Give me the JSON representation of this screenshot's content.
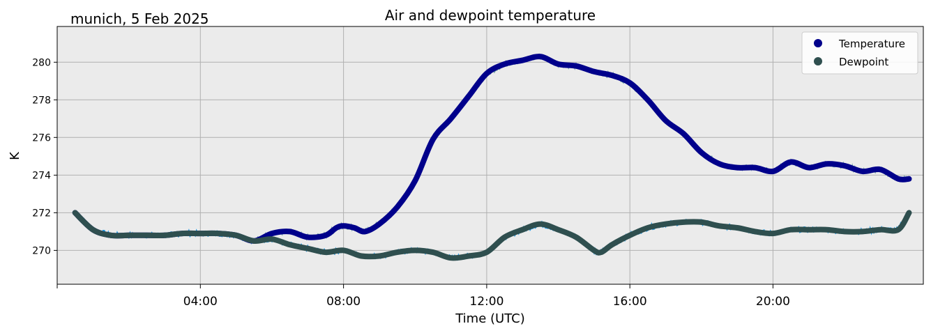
{
  "chart_data": {
    "type": "line",
    "title": "Air and dewpoint temperature",
    "subtitle": "munich, 5 Feb 2025",
    "xlabel": "Time (UTC)",
    "ylabel": "K",
    "x_unit": "hours UTC",
    "xlim": [
      0,
      24.2
    ],
    "ylim": [
      268.2,
      281.9
    ],
    "x_ticks": [
      {
        "value": 4,
        "label": "04:00"
      },
      {
        "value": 8,
        "label": "08:00"
      },
      {
        "value": 12,
        "label": "12:00"
      },
      {
        "value": 16,
        "label": "16:00"
      },
      {
        "value": 20,
        "label": "20:00"
      }
    ],
    "y_ticks": [
      270,
      272,
      274,
      276,
      278,
      280
    ],
    "grid": true,
    "legend_position": "top-right",
    "series": [
      {
        "name": "Temperature",
        "color": "#00008b",
        "raw_color": "#7aa8ab",
        "x": [
          0.5,
          1.0,
          1.5,
          2.0,
          2.5,
          3.0,
          3.5,
          4.0,
          4.5,
          5.0,
          5.5,
          6.0,
          6.5,
          7.0,
          7.5,
          7.8,
          8.0,
          8.3,
          8.6,
          9.0,
          9.5,
          10.0,
          10.5,
          11.0,
          11.5,
          12.0,
          12.5,
          13.0,
          13.5,
          14.0,
          14.5,
          15.0,
          15.5,
          16.0,
          16.5,
          17.0,
          17.5,
          18.0,
          18.5,
          19.0,
          19.5,
          20.0,
          20.5,
          21.0,
          21.5,
          22.0,
          22.5,
          23.0,
          23.5,
          23.8
        ],
        "values": [
          272.0,
          271.1,
          270.8,
          270.8,
          270.8,
          270.8,
          270.9,
          270.9,
          270.9,
          270.8,
          270.5,
          270.9,
          271.0,
          270.7,
          270.8,
          271.2,
          271.3,
          271.2,
          271.0,
          271.4,
          272.3,
          273.7,
          275.9,
          277.0,
          278.2,
          279.4,
          279.9,
          280.1,
          280.3,
          279.9,
          279.8,
          279.5,
          279.3,
          278.9,
          278.0,
          276.9,
          276.2,
          275.2,
          274.6,
          274.4,
          274.4,
          274.2,
          274.7,
          274.4,
          274.6,
          274.5,
          274.2,
          274.3,
          273.8,
          273.8
        ]
      },
      {
        "name": "Dewpoint",
        "color": "#2f4f4f",
        "raw_color": "#1e9be8",
        "x": [
          0.5,
          1.0,
          1.5,
          2.0,
          2.5,
          3.0,
          3.5,
          4.0,
          4.5,
          5.0,
          5.5,
          6.0,
          6.5,
          7.0,
          7.5,
          8.0,
          8.5,
          9.0,
          9.5,
          10.0,
          10.5,
          11.0,
          11.5,
          12.0,
          12.5,
          13.0,
          13.5,
          14.0,
          14.5,
          15.0,
          15.2,
          15.5,
          16.0,
          16.5,
          17.0,
          17.5,
          18.0,
          18.5,
          19.0,
          19.5,
          20.0,
          20.5,
          21.0,
          21.5,
          22.0,
          22.5,
          23.0,
          23.5,
          23.8
        ],
        "values": [
          272.0,
          271.1,
          270.8,
          270.8,
          270.8,
          270.8,
          270.9,
          270.9,
          270.9,
          270.8,
          270.5,
          270.6,
          270.3,
          270.1,
          269.9,
          270.0,
          269.7,
          269.7,
          269.9,
          270.0,
          269.9,
          269.6,
          269.7,
          269.9,
          270.7,
          271.1,
          271.4,
          271.1,
          270.7,
          270.0,
          269.9,
          270.3,
          270.8,
          271.2,
          271.4,
          271.5,
          271.5,
          271.3,
          271.2,
          271.0,
          270.9,
          271.1,
          271.1,
          271.1,
          271.0,
          271.0,
          271.1,
          271.1,
          272.0
        ]
      }
    ]
  }
}
